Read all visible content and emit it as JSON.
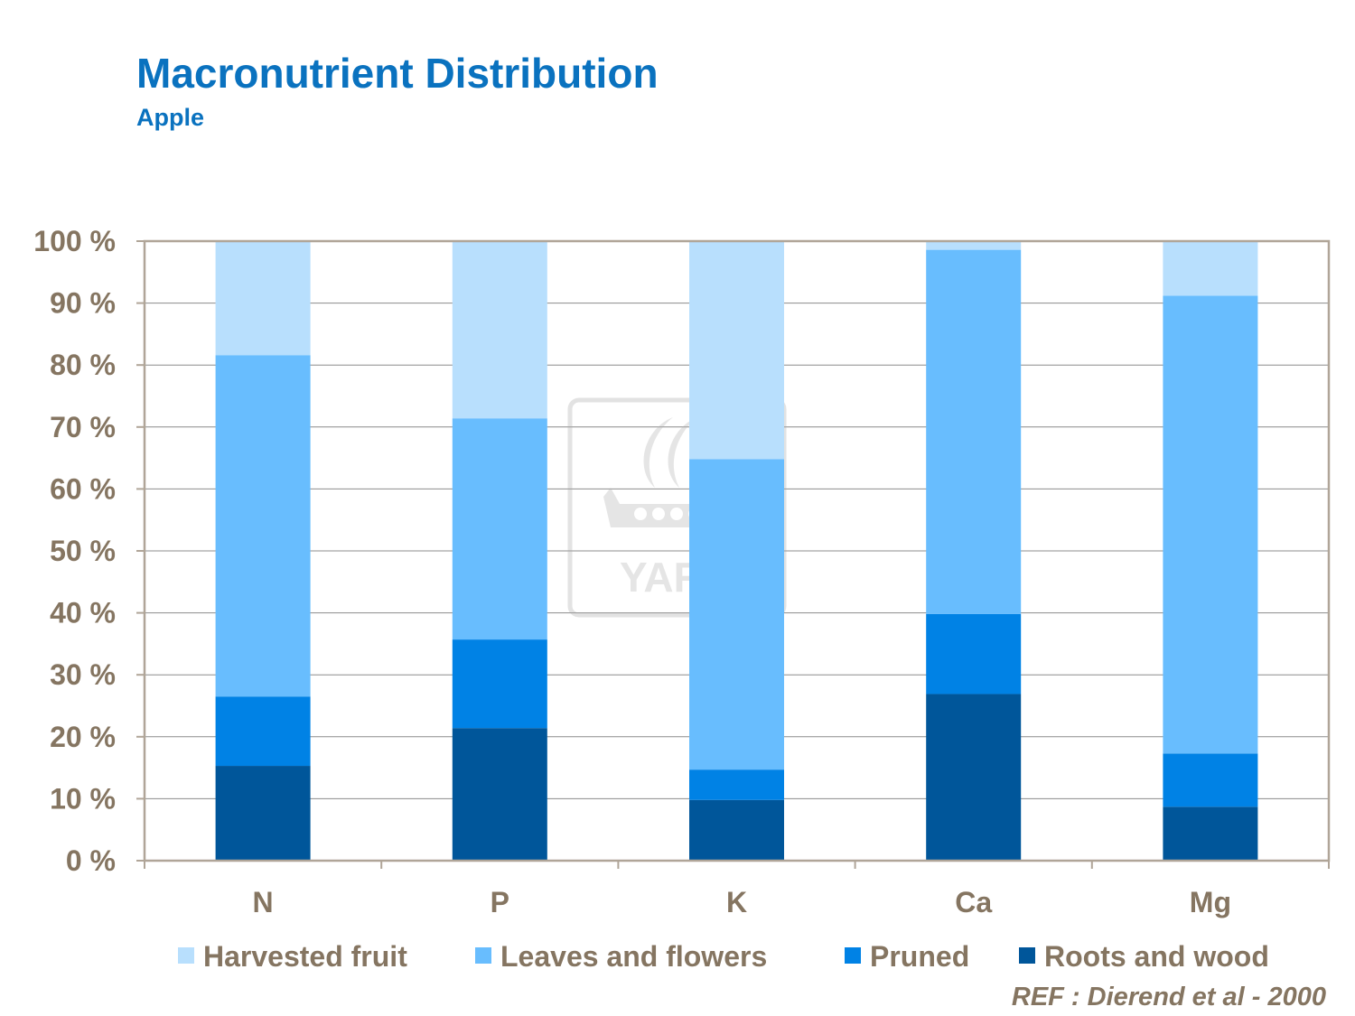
{
  "header": {
    "title": "Macronutrient Distribution",
    "subtitle": "Apple"
  },
  "reference": "REF :  Dierend et al - 2000",
  "watermark": {
    "text": "YARA"
  },
  "colors": {
    "text_axis": "#857561",
    "title": "#0a72bf",
    "frame": "#b0a598",
    "grid": "#8c8c8c"
  },
  "chart_data": {
    "type": "bar",
    "stacked": true,
    "categories": [
      "N",
      "P",
      "K",
      "Ca",
      "Mg"
    ],
    "ylim": [
      0,
      100
    ],
    "yticks": [
      0,
      10,
      20,
      30,
      40,
      50,
      60,
      70,
      80,
      90,
      100
    ],
    "ytick_labels": [
      "0 %",
      "10 %",
      "20 %",
      "30 %",
      "40 %",
      "50 %",
      "60 %",
      "70 %",
      "80 %",
      "90 %",
      "100 %"
    ],
    "grid": true,
    "legend_position": "bottom",
    "series": [
      {
        "name": "Roots and wood",
        "color": "#00569a",
        "values": [
          15.3,
          21.4,
          9.8,
          26.9,
          8.7
        ]
      },
      {
        "name": "Pruned",
        "color": "#0082e5",
        "values": [
          11.2,
          14.3,
          4.9,
          12.9,
          8.6
        ]
      },
      {
        "name": "Leaves and flowers",
        "color": "#68bdfe",
        "values": [
          55.1,
          35.7,
          50.1,
          58.8,
          73.9
        ]
      },
      {
        "name": "Harvested fruit",
        "color": "#b8dffd",
        "values": [
          18.4,
          28.6,
          35.2,
          1.4,
          8.8
        ]
      }
    ],
    "legend_order": [
      "Harvested fruit",
      "Leaves and flowers",
      "Pruned",
      "Roots and wood"
    ]
  }
}
